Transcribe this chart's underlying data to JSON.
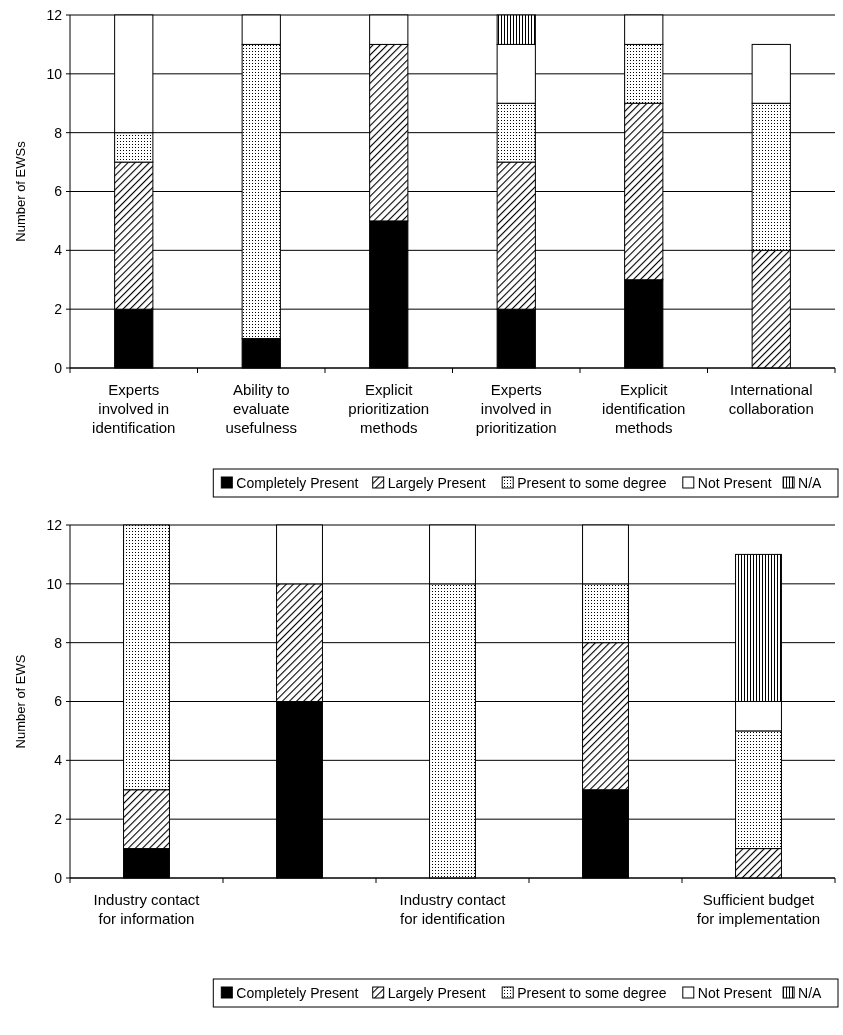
{
  "chart_data": [
    {
      "type": "bar",
      "stacked": true,
      "ylabel": "Number of EWSs",
      "categories": [
        "Experts involved in identification",
        "Ability to evaluate usefulness",
        "Explicit prioritization methods",
        "Experts involved in prioritization",
        "Explicit identification methods",
        "International collaboration"
      ],
      "series": [
        {
          "name": "Completely Present",
          "color": "#000000",
          "values": [
            2,
            1,
            5,
            2,
            3,
            0
          ]
        },
        {
          "name": "Largely Present",
          "color": "#000000",
          "values": [
            5,
            0,
            6,
            5,
            6,
            4
          ]
        },
        {
          "name": "Present to some degree",
          "color": "#000000",
          "values": [
            1,
            10,
            0,
            2,
            2,
            5
          ]
        },
        {
          "name": "Not Present",
          "color": "#ffffff",
          "values": [
            4,
            1,
            1,
            2,
            1,
            2
          ]
        },
        {
          "name": "N/A",
          "color": "#000000",
          "values": [
            0,
            0,
            0,
            1,
            0,
            0
          ]
        }
      ],
      "ylim": [
        0,
        12
      ],
      "yticks": [
        0,
        2,
        4,
        6,
        8,
        10,
        12
      ],
      "grid": "y",
      "legend": "bottom"
    },
    {
      "type": "bar",
      "stacked": true,
      "ylabel": "Number of EWS",
      "categories": [
        "Industry contact for information",
        null,
        "Industry contact for identification",
        null,
        "Sufficient budget for implementation"
      ],
      "series": [
        {
          "name": "Completely Present",
          "color": "#000000",
          "values": [
            1,
            6,
            0,
            3,
            0
          ]
        },
        {
          "name": "Largely Present",
          "color": "#000000",
          "values": [
            2,
            4,
            0,
            5,
            1
          ]
        },
        {
          "name": "Present to some degree",
          "color": "#000000",
          "values": [
            9,
            0,
            10,
            2,
            4
          ]
        },
        {
          "name": "Not Present",
          "color": "#ffffff",
          "values": [
            0,
            2,
            2,
            2,
            1
          ]
        },
        {
          "name": "N/A",
          "color": "#000000",
          "values": [
            0,
            0,
            0,
            0,
            5
          ]
        }
      ],
      "ylim": [
        0,
        12
      ],
      "yticks": [
        0,
        2,
        4,
        6,
        8,
        10,
        12
      ],
      "grid": "y",
      "legend": "bottom"
    }
  ]
}
